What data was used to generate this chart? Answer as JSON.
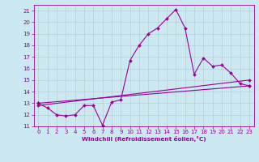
{
  "xlabel": "Windchill (Refroidissement éolien,°C)",
  "bg_color": "#cce8f0",
  "line_color": "#990099",
  "grid_color": "#b0c8d0",
  "xlim": [
    -0.5,
    23.5
  ],
  "ylim": [
    11,
    21.5
  ],
  "yticks": [
    11,
    12,
    13,
    14,
    15,
    16,
    17,
    18,
    19,
    20,
    21
  ],
  "xticks": [
    0,
    1,
    2,
    3,
    4,
    5,
    6,
    7,
    8,
    9,
    10,
    11,
    12,
    13,
    14,
    15,
    16,
    17,
    18,
    19,
    20,
    21,
    22,
    23
  ],
  "series1_x": [
    0,
    1,
    2,
    3,
    4,
    5,
    6,
    7,
    8,
    9,
    10,
    11,
    12,
    13,
    14,
    15,
    16,
    17,
    18,
    19,
    20,
    21,
    22,
    23
  ],
  "series1_y": [
    13.0,
    12.6,
    12.0,
    11.9,
    12.0,
    12.8,
    12.8,
    11.1,
    13.1,
    13.3,
    16.7,
    18.0,
    19.0,
    19.5,
    20.3,
    21.1,
    19.5,
    15.5,
    16.9,
    16.2,
    16.3,
    15.6,
    14.7,
    14.5
  ],
  "series2_x": [
    0,
    23
  ],
  "series2_y": [
    12.8,
    15.0
  ],
  "series3_x": [
    0,
    23
  ],
  "series3_y": [
    13.0,
    14.5
  ]
}
